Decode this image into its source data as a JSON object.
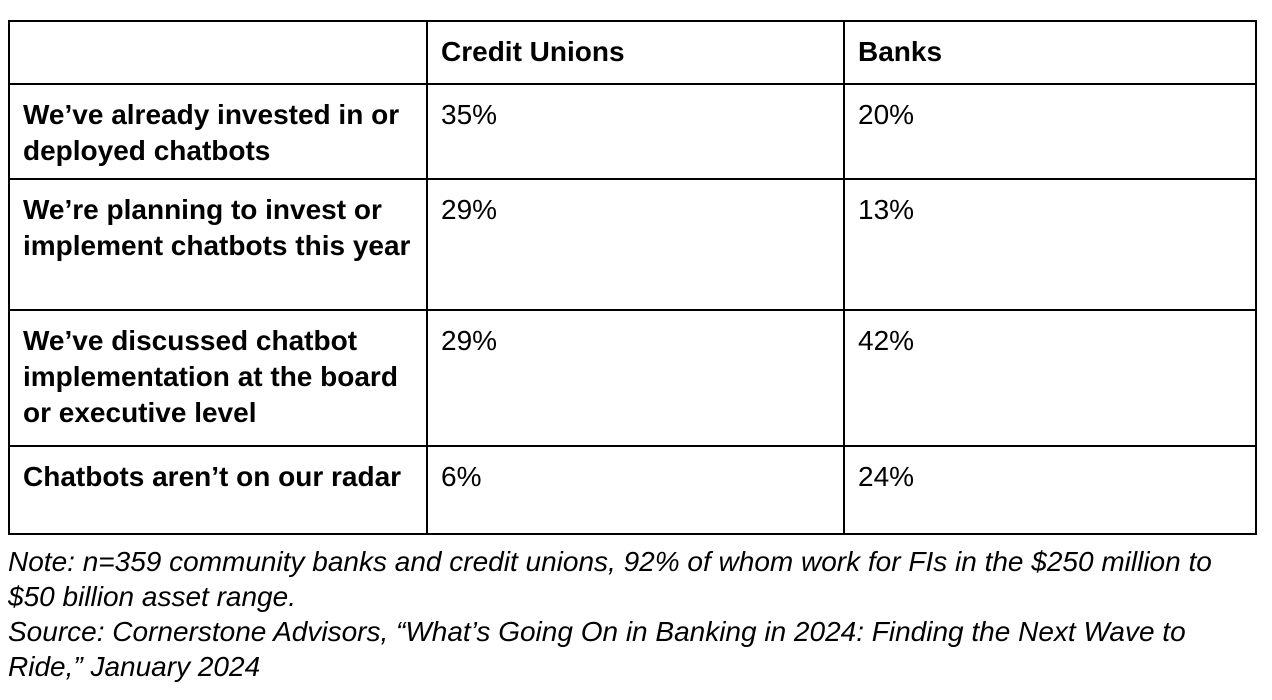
{
  "table": {
    "columns": {
      "label_header": "",
      "credit_unions": "Credit Unions",
      "banks": "Banks"
    },
    "rows": [
      {
        "label": "We’ve already invested in or deployed chatbots",
        "credit_unions": "35%",
        "banks": "20%"
      },
      {
        "label": "We’re planning to invest or implement chatbots this year",
        "credit_unions": "29%",
        "banks": "13%"
      },
      {
        "label": "We’ve discussed chatbot implementation at the board or executive level",
        "credit_unions": "29%",
        "banks": "42%"
      },
      {
        "label": "Chatbots aren’t on our radar",
        "credit_unions": "6%",
        "banks": "24%"
      }
    ]
  },
  "chart_data": {
    "type": "table",
    "title": "",
    "categories": [
      "We’ve already invested in or deployed chatbots",
      "We’re planning to invest or implement chatbots this year",
      "We’ve discussed chatbot implementation at the board or executive level",
      "Chatbots aren’t on our radar"
    ],
    "series": [
      {
        "name": "Credit Unions",
        "values": [
          35,
          29,
          29,
          6
        ]
      },
      {
        "name": "Banks",
        "values": [
          20,
          13,
          42,
          24
        ]
      }
    ],
    "unit": "%"
  },
  "footnote": {
    "note": "Note: n=359 community banks and credit unions, 92% of whom work for FIs in the $250 million to $50 billion asset range.",
    "source": "Source: Cornerstone Advisors, “What’s Going On in Banking in 2024: Finding the Next Wave to Ride,” January 2024"
  },
  "colors": {
    "border": "#000000",
    "text": "#000000",
    "background": "#ffffff"
  }
}
